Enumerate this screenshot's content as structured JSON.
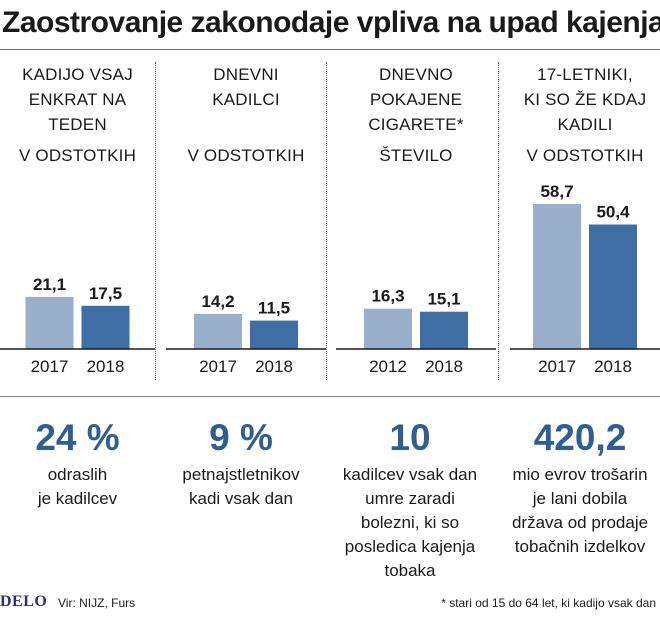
{
  "title": "Zaostrovanje zakonodaje vpliva na upad kajenja",
  "colors": {
    "first": "#9aafcc",
    "second": "#3e6ea3",
    "big_number": "#2f5f91"
  },
  "chart_data": [
    {
      "type": "bar",
      "title_lines": [
        "KADIJO VSAJ",
        "ENKRAT NA",
        "TEDEN"
      ],
      "unit": "V ODSTOTKIH",
      "categories": [
        "2017",
        "2018"
      ],
      "values": [
        21.1,
        17.5
      ],
      "value_labels": [
        "21,1",
        "17,5"
      ]
    },
    {
      "type": "bar",
      "title_lines": [
        "DNEVNI",
        "KADILCI"
      ],
      "unit": "V ODSTOTKIH",
      "categories": [
        "2017",
        "2018"
      ],
      "values": [
        14.2,
        11.5
      ],
      "value_labels": [
        "14,2",
        "11,5"
      ]
    },
    {
      "type": "bar",
      "title_lines": [
        "DNEVNO",
        "POKAJENE",
        "CIGARETE*"
      ],
      "unit": "ŠTEVILO",
      "categories": [
        "2012",
        "2018"
      ],
      "values": [
        16.3,
        15.1
      ],
      "value_labels": [
        "16,3",
        "15,1"
      ]
    },
    {
      "type": "bar",
      "title_lines": [
        "17-LETNIKI,",
        "KI SO ŽE KDAJ",
        "KADILI"
      ],
      "unit": "V ODSTOTKIH",
      "categories": [
        "2017",
        "2018"
      ],
      "values": [
        58.7,
        50.4
      ],
      "value_labels": [
        "58,7",
        "50,4"
      ]
    }
  ],
  "facts": [
    {
      "big": "24 %",
      "lines": [
        "odraslih",
        "je kadilcev"
      ]
    },
    {
      "big": "9 %",
      "lines": [
        "petnajstletnikov",
        "kadi vsak dan"
      ]
    },
    {
      "big": "10",
      "lines": [
        "kadilcev vsak dan",
        "umre zaradi",
        "bolezni, ki so",
        "posledica kajenja",
        "tobaka"
      ]
    },
    {
      "big": "420,2",
      "lines": [
        "mio evrov trošarin",
        "je lani dobila",
        "država od prodaje",
        "tobačnih izdelkov"
      ]
    }
  ],
  "footer": {
    "logo": "DELO",
    "source": "Vir: NIJZ, Furs",
    "note": "* stari od 15 do 64 let, ki kadijo vsak dan"
  }
}
